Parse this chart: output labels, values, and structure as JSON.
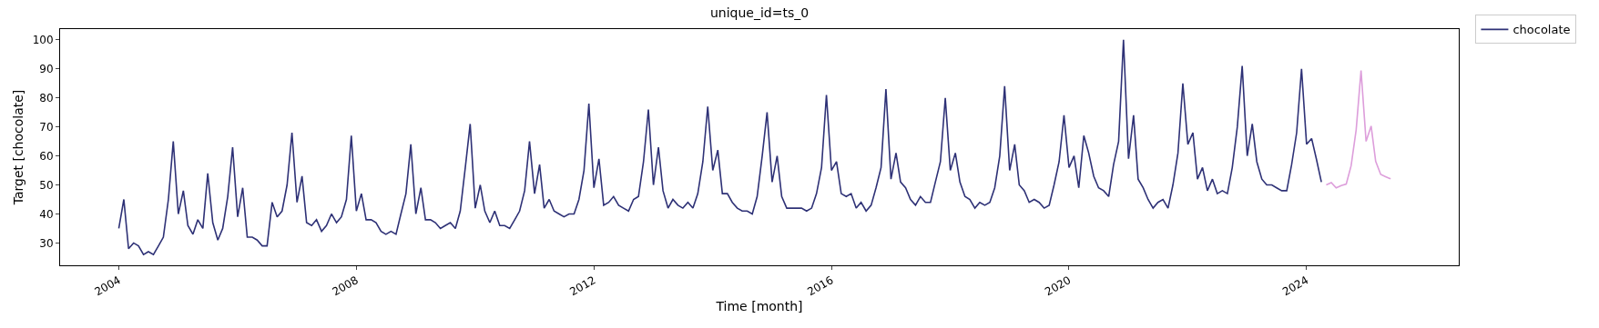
{
  "chart_data": {
    "type": "line",
    "title": "unique_id=ts_0",
    "xlabel": "Time [month]",
    "ylabel": "Target [chocolate]",
    "xlim": [
      "2003-01-05",
      "2026-07-25"
    ],
    "ylim": [
      22.3,
      103.7
    ],
    "xticks": [
      "2004",
      "2008",
      "2012",
      "2016",
      "2020",
      "2024"
    ],
    "yticks": [
      30,
      40,
      50,
      60,
      70,
      80,
      90,
      100
    ],
    "legend": "top right",
    "line_style": "solid",
    "marker": "none",
    "series": [
      {
        "name": "chocolate",
        "color": "#2e3176",
        "x": [
          "2004-01",
          "2004-02",
          "2004-03",
          "2004-04",
          "2004-05",
          "2004-06",
          "2004-07",
          "2004-08",
          "2004-09",
          "2004-10",
          "2004-11",
          "2004-12",
          "2005-01",
          "2005-02",
          "2005-03",
          "2005-04",
          "2005-05",
          "2005-06",
          "2005-07",
          "2005-08",
          "2005-09",
          "2005-10",
          "2005-11",
          "2005-12",
          "2006-01",
          "2006-02",
          "2006-03",
          "2006-04",
          "2006-05",
          "2006-06",
          "2006-07",
          "2006-08",
          "2006-09",
          "2006-10",
          "2006-11",
          "2006-12",
          "2007-01",
          "2007-02",
          "2007-03",
          "2007-04",
          "2007-05",
          "2007-06",
          "2007-07",
          "2007-08",
          "2007-09",
          "2007-10",
          "2007-11",
          "2007-12",
          "2008-01",
          "2008-02",
          "2008-03",
          "2008-04",
          "2008-05",
          "2008-06",
          "2008-07",
          "2008-08",
          "2008-09",
          "2008-10",
          "2008-11",
          "2008-12",
          "2009-01",
          "2009-02",
          "2009-03",
          "2009-04",
          "2009-05",
          "2009-06",
          "2009-07",
          "2009-08",
          "2009-09",
          "2009-10",
          "2009-11",
          "2009-12",
          "2010-01",
          "2010-02",
          "2010-03",
          "2010-04",
          "2010-05",
          "2010-06",
          "2010-07",
          "2010-08",
          "2010-09",
          "2010-10",
          "2010-11",
          "2010-12",
          "2011-01",
          "2011-02",
          "2011-03",
          "2011-04",
          "2011-05",
          "2011-06",
          "2011-07",
          "2011-08",
          "2011-09",
          "2011-10",
          "2011-11",
          "2011-12",
          "2012-01",
          "2012-02",
          "2012-03",
          "2012-04",
          "2012-05",
          "2012-06",
          "2012-07",
          "2012-08",
          "2012-09",
          "2012-10",
          "2012-11",
          "2012-12",
          "2013-01",
          "2013-02",
          "2013-03",
          "2013-04",
          "2013-05",
          "2013-06",
          "2013-07",
          "2013-08",
          "2013-09",
          "2013-10",
          "2013-11",
          "2013-12",
          "2014-01",
          "2014-02",
          "2014-03",
          "2014-04",
          "2014-05",
          "2014-06",
          "2014-07",
          "2014-08",
          "2014-09",
          "2014-10",
          "2014-11",
          "2014-12",
          "2015-01",
          "2015-02",
          "2015-03",
          "2015-04",
          "2015-05",
          "2015-06",
          "2015-07",
          "2015-08",
          "2015-09",
          "2015-10",
          "2015-11",
          "2015-12",
          "2016-01",
          "2016-02",
          "2016-03",
          "2016-04",
          "2016-05",
          "2016-06",
          "2016-07",
          "2016-08",
          "2016-09",
          "2016-10",
          "2016-11",
          "2016-12",
          "2017-01",
          "2017-02",
          "2017-03",
          "2017-04",
          "2017-05",
          "2017-06",
          "2017-07",
          "2017-08",
          "2017-09",
          "2017-10",
          "2017-11",
          "2017-12",
          "2018-01",
          "2018-02",
          "2018-03",
          "2018-04",
          "2018-05",
          "2018-06",
          "2018-07",
          "2018-08",
          "2018-09",
          "2018-10",
          "2018-11",
          "2018-12",
          "2019-01",
          "2019-02",
          "2019-03",
          "2019-04",
          "2019-05",
          "2019-06",
          "2019-07",
          "2019-08",
          "2019-09",
          "2019-10",
          "2019-11",
          "2019-12",
          "2020-01",
          "2020-02",
          "2020-03",
          "2020-04",
          "2020-05",
          "2020-06",
          "2020-07",
          "2020-08",
          "2020-09",
          "2020-10",
          "2020-11",
          "2020-12",
          "2021-01",
          "2021-02",
          "2021-03",
          "2021-04",
          "2021-05",
          "2021-06",
          "2021-07",
          "2021-08",
          "2021-09",
          "2021-10",
          "2021-11",
          "2021-12",
          "2022-01",
          "2022-02",
          "2022-03",
          "2022-04",
          "2022-05",
          "2022-06",
          "2022-07",
          "2022-08",
          "2022-09",
          "2022-10",
          "2022-11",
          "2022-12",
          "2023-01",
          "2023-02",
          "2023-03",
          "2023-04",
          "2023-05",
          "2023-06",
          "2023-07",
          "2023-08",
          "2023-09",
          "2023-10",
          "2023-11",
          "2023-12",
          "2024-01",
          "2024-02",
          "2024-03",
          "2024-04"
        ],
        "values": [
          35,
          45,
          28,
          30,
          29,
          26,
          27,
          26,
          29,
          32,
          45,
          65,
          40,
          48,
          36,
          33,
          38,
          35,
          54,
          37,
          31,
          35,
          46,
          63,
          39,
          49,
          32,
          32,
          31,
          29,
          29,
          44,
          39,
          41,
          50,
          68,
          44,
          53,
          37,
          36,
          38,
          34,
          36,
          40,
          37,
          39,
          45,
          67,
          41,
          47,
          38,
          38,
          37,
          34,
          33,
          34,
          33,
          40,
          47,
          64,
          40,
          49,
          38,
          38,
          37,
          35,
          36,
          37,
          35,
          41,
          56,
          71,
          42,
          50,
          41,
          37,
          41,
          36,
          36,
          35,
          38,
          41,
          48,
          65,
          47,
          57,
          42,
          45,
          41,
          40,
          39,
          40,
          40,
          45,
          55,
          78,
          49,
          59,
          43,
          44,
          46,
          43,
          42,
          41,
          45,
          46,
          58,
          76,
          50,
          63,
          48,
          42,
          45,
          43,
          42,
          44,
          42,
          47,
          58,
          77,
          55,
          62,
          47,
          47,
          44,
          42,
          41,
          41,
          40,
          46,
          60,
          75,
          51,
          60,
          46,
          42,
          42,
          42,
          42,
          41,
          42,
          47,
          56,
          81,
          55,
          58,
          47,
          46,
          47,
          42,
          44,
          41,
          43,
          49,
          56,
          83,
          52,
          61,
          51,
          49,
          45,
          43,
          46,
          44,
          44,
          51,
          58,
          80,
          55,
          61,
          51,
          46,
          45,
          42,
          44,
          43,
          44,
          49,
          60,
          84,
          55,
          64,
          50,
          48,
          44,
          45,
          44,
          42,
          43,
          50,
          58,
          74,
          56,
          60,
          49,
          67,
          61,
          53,
          49,
          48,
          46,
          57,
          65,
          100,
          59,
          74,
          52,
          49,
          45,
          42,
          44,
          45,
          42,
          50,
          61,
          85,
          64,
          68,
          52,
          56,
          48,
          52,
          47,
          48,
          47,
          56,
          70,
          91,
          60,
          71,
          58,
          52,
          50,
          50,
          49,
          48,
          48,
          57,
          68,
          90,
          64,
          66,
          59,
          51
        ]
      },
      {
        "color": "#dd9edb",
        "x": [
          "2024-05",
          "2024-06",
          "2024-07",
          "2024-08",
          "2024-09",
          "2024-10",
          "2024-11",
          "2024-12",
          "2025-01",
          "2025-02",
          "2025-03",
          "2025-04",
          "2025-05",
          "2025-06"
        ],
        "values": [
          50,
          50.8,
          49,
          49.8,
          50.3,
          56.6,
          69,
          89.4,
          65,
          70.3,
          58.1,
          53.6,
          52.8,
          52.1
        ]
      }
    ]
  }
}
